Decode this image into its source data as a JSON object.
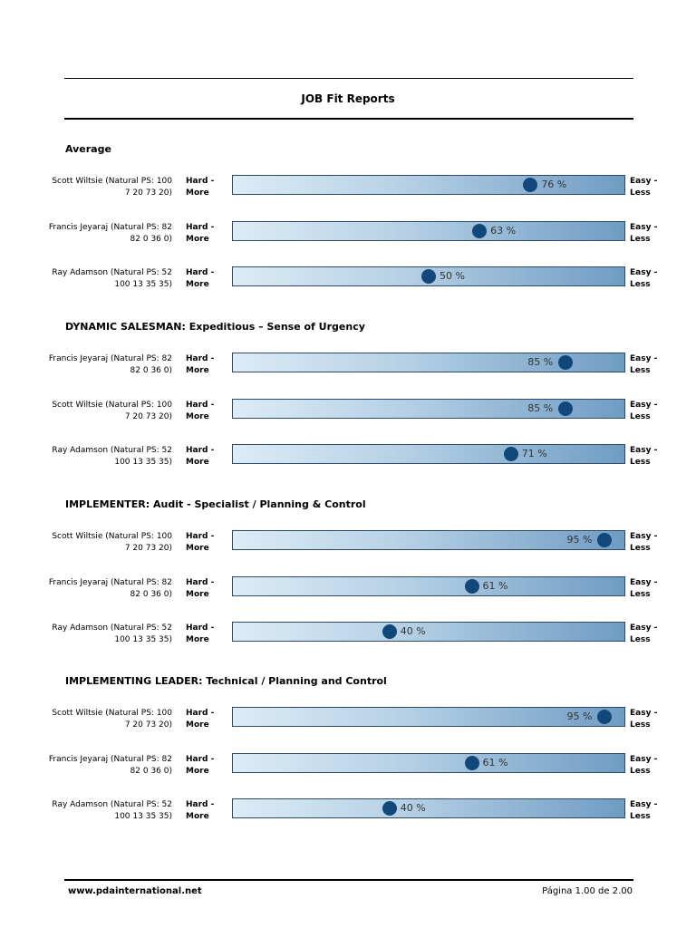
{
  "title": "JOB Fit Reports",
  "scale": {
    "left_top": "Hard -",
    "left_bottom": "More",
    "right_top": "Easy -",
    "right_bottom": "Less"
  },
  "colors": {
    "dot": "#12477a",
    "bar_start": "#dcecf7",
    "bar_end": "#6f9cc4"
  },
  "sections": [
    {
      "title": "Average",
      "rows": [
        {
          "name1": "Scott Wiltsie (Natural PS: 100",
          "name2": "7 20 73 20)",
          "value": 76,
          "label": "76 %"
        },
        {
          "name1": "Francis Jeyaraj (Natural PS: 82",
          "name2": "82 0 36 0)",
          "value": 63,
          "label": "63 %"
        },
        {
          "name1": "Ray Adamson (Natural PS: 52",
          "name2": "100 13 35 35)",
          "value": 50,
          "label": "50 %"
        }
      ]
    },
    {
      "title": "DYNAMIC SALESMAN: Expeditious – Sense of Urgency",
      "rows": [
        {
          "name1": "Francis Jeyaraj (Natural PS: 82",
          "name2": "82 0 36 0)",
          "value": 85,
          "label": "85 %"
        },
        {
          "name1": "Scott Wiltsie (Natural PS: 100",
          "name2": "7 20 73 20)",
          "value": 85,
          "label": "85 %"
        },
        {
          "name1": "Ray Adamson (Natural PS: 52",
          "name2": "100 13 35 35)",
          "value": 71,
          "label": "71 %"
        }
      ]
    },
    {
      "title": "IMPLEMENTER: Audit - Specialist / Planning & Control",
      "rows": [
        {
          "name1": "Scott Wiltsie (Natural PS: 100",
          "name2": "7 20 73 20)",
          "value": 95,
          "label": "95 %"
        },
        {
          "name1": "Francis Jeyaraj (Natural PS: 82",
          "name2": "82 0 36 0)",
          "value": 61,
          "label": "61 %"
        },
        {
          "name1": "Ray Adamson (Natural PS: 52",
          "name2": "100 13 35 35)",
          "value": 40,
          "label": "40 %"
        }
      ]
    },
    {
      "title": "IMPLEMENTING LEADER: Technical / Planning and Control",
      "rows": [
        {
          "name1": "Scott Wiltsie (Natural PS: 100",
          "name2": "7 20 73 20)",
          "value": 95,
          "label": "95 %"
        },
        {
          "name1": "Francis Jeyaraj (Natural PS: 82",
          "name2": "82 0 36 0)",
          "value": 61,
          "label": "61 %"
        },
        {
          "name1": "Ray Adamson (Natural PS: 52",
          "name2": "100 13 35 35)",
          "value": 40,
          "label": "40 %"
        }
      ]
    }
  ],
  "footer": {
    "url": "www.pdainternational.net",
    "page": "Página 1.00 de 2.00"
  }
}
